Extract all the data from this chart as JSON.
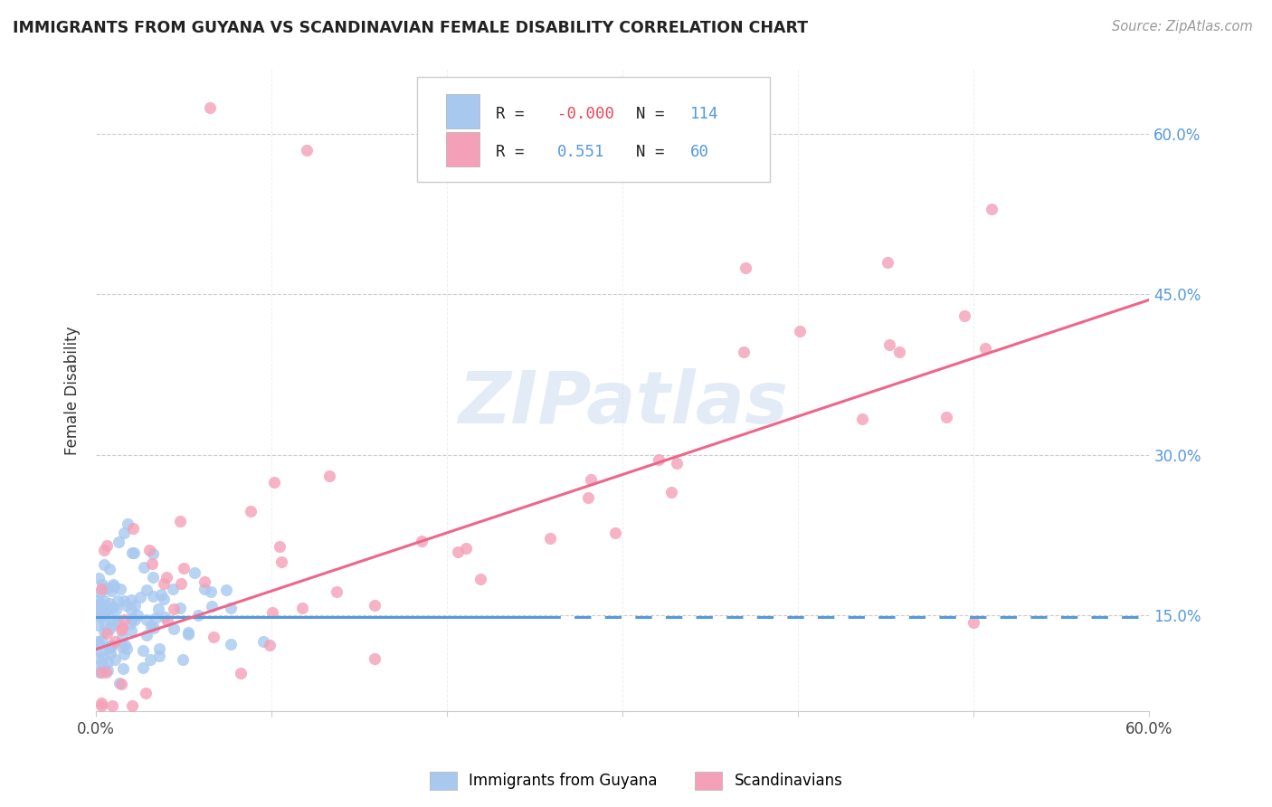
{
  "title": "IMMIGRANTS FROM GUYANA VS SCANDINAVIAN FEMALE DISABILITY CORRELATION CHART",
  "source": "Source: ZipAtlas.com",
  "ylabel": "Female Disability",
  "ytick_labels": [
    "15.0%",
    "30.0%",
    "45.0%",
    "60.0%"
  ],
  "ytick_values": [
    0.15,
    0.3,
    0.45,
    0.6
  ],
  "xmin": 0.0,
  "xmax": 0.6,
  "ymin": 0.06,
  "ymax": 0.66,
  "legend_label1": "Immigrants from Guyana",
  "legend_label2": "Scandinavians",
  "guyana_color": "#a8c8f0",
  "scandinavian_color": "#f4a0b8",
  "guyana_line_color": "#5599dd",
  "scandinavian_line_color": "#ee6688",
  "blue_text_color": "#5599dd",
  "red_text_color": "#ee4455",
  "dark_text_color": "#222222",
  "watermark_color": "#ccddef",
  "watermark": "ZIPatlas",
  "guyana_seed": 42,
  "scandinavian_seed": 99,
  "scand_line_x0": 0.0,
  "scand_line_y0": 0.118,
  "scand_line_x1": 0.6,
  "scand_line_y1": 0.445,
  "guyana_line_x0": 0.0,
  "guyana_line_x1": 0.255,
  "guyana_line_y": 0.148
}
